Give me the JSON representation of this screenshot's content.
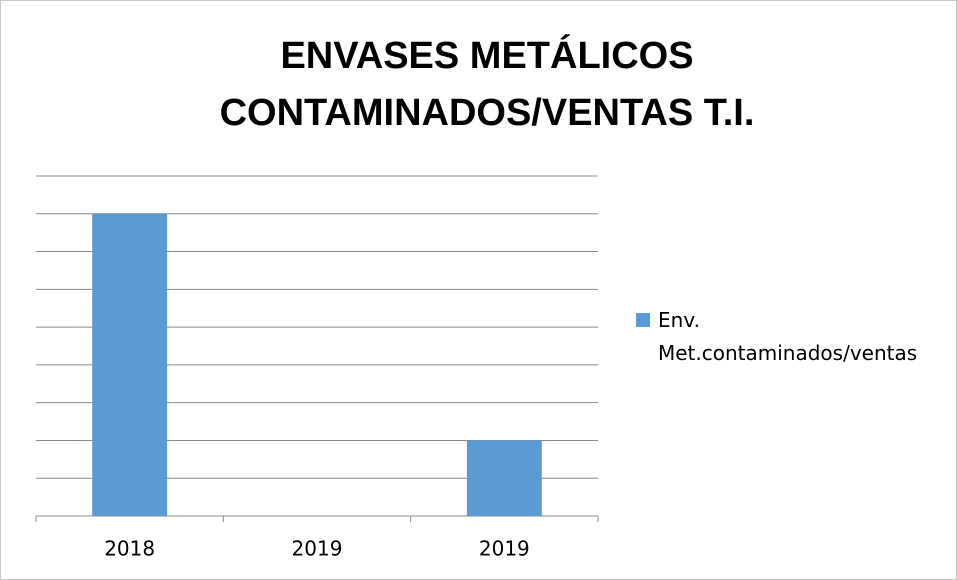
{
  "chart_data": {
    "type": "bar",
    "title": [
      "ENVASES METÁLICOS",
      "CONTAMINADOS/VENTAS T.I."
    ],
    "categories": [
      "2018",
      "2019",
      "2019"
    ],
    "series": [
      {
        "name": "Env. Met.contaminados/ventas",
        "color": "#5b9bd5",
        "values": [
          8,
          0,
          2
        ]
      }
    ],
    "ylim": [
      0,
      9
    ],
    "yticks": [
      0,
      1,
      2,
      3,
      4,
      5,
      6,
      7,
      8,
      9
    ],
    "grid": true,
    "legend": "right"
  }
}
